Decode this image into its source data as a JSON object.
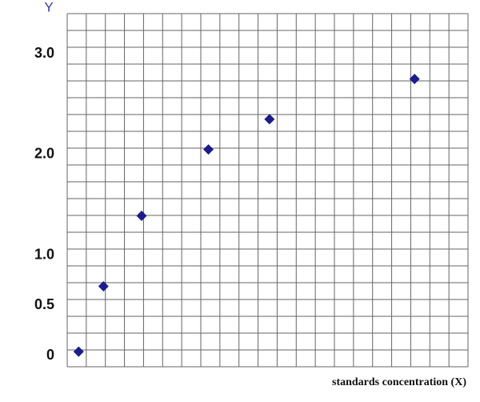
{
  "chart_data": {
    "type": "scatter",
    "y_label": "Y",
    "x_label": "standards concentration (X)",
    "x": [
      0.6,
      1.9,
      3.9,
      7.4,
      10.6,
      18.2
    ],
    "values": [
      0.04,
      0.69,
      1.39,
      2.05,
      2.35,
      2.75
    ],
    "color": "#1c1c8e",
    "xlim": [
      0,
      21
    ],
    "ylim": [
      -0.11,
      3.4
    ],
    "yticks": [
      0,
      0.5,
      {
        "value": 1,
        "label": "1.0"
      },
      {
        "value": 2,
        "label": "2.0"
      },
      {
        "value": 3,
        "label": "3.0"
      }
    ],
    "grid": true
  }
}
